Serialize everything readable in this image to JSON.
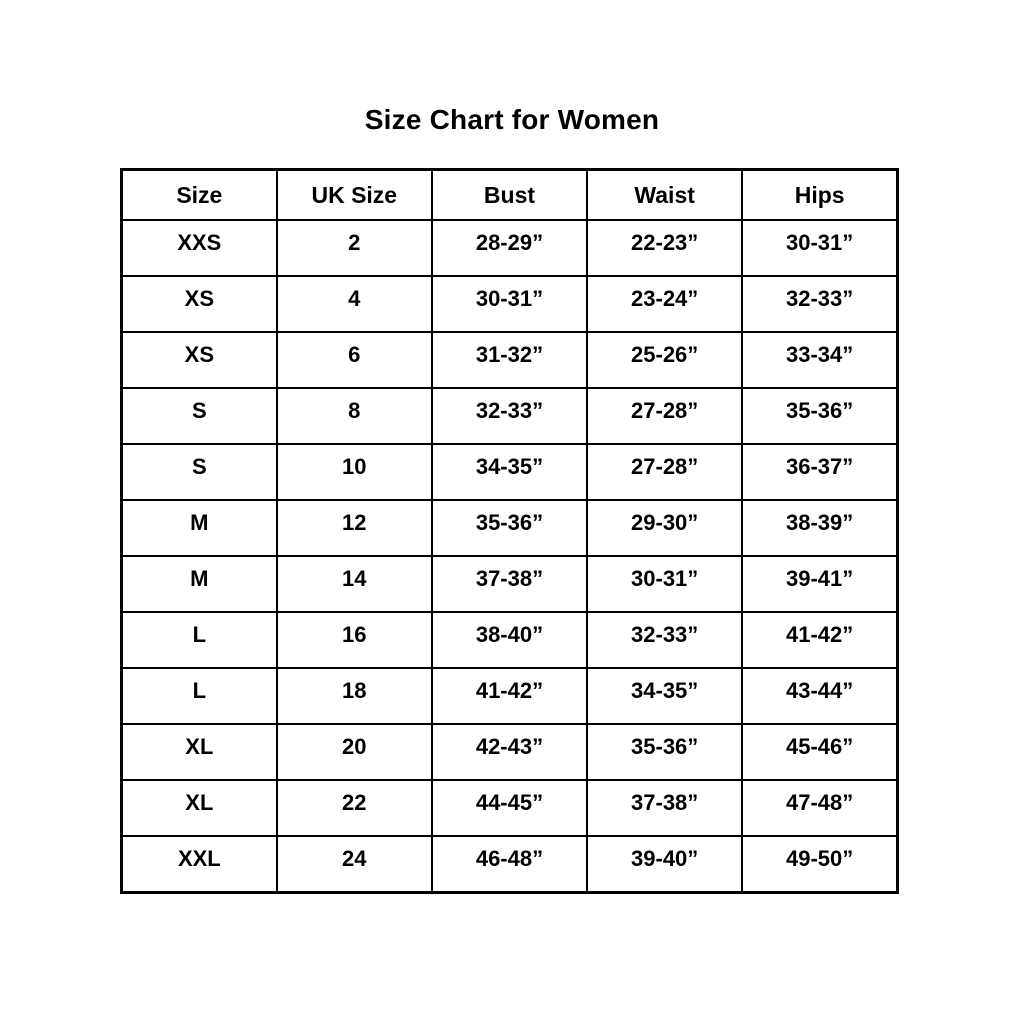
{
  "page": {
    "title": "Size Chart for Women"
  },
  "chart_data": {
    "type": "table",
    "title": "Size Chart for Women",
    "columns": [
      "Size",
      "UK Size",
      "Bust",
      "Waist",
      "Hips"
    ],
    "rows": [
      [
        "XXS",
        "2",
        "28-29”",
        "22-23”",
        "30-31”"
      ],
      [
        "XS",
        "4",
        "30-31”",
        "23-24”",
        "32-33”"
      ],
      [
        "XS",
        "6",
        "31-32”",
        "25-26”",
        "33-34”"
      ],
      [
        "S",
        "8",
        "32-33”",
        "27-28”",
        "35-36”"
      ],
      [
        "S",
        "10",
        "34-35”",
        "27-28”",
        "36-37”"
      ],
      [
        "M",
        "12",
        "35-36”",
        "29-30”",
        "38-39”"
      ],
      [
        "M",
        "14",
        "37-38”",
        "30-31”",
        "39-41”"
      ],
      [
        "L",
        "16",
        "38-40”",
        "32-33”",
        "41-42”"
      ],
      [
        "L",
        "18",
        "41-42”",
        "34-35”",
        "43-44”"
      ],
      [
        "XL",
        "20",
        "42-43”",
        "35-36”",
        "45-46”"
      ],
      [
        "XL",
        "22",
        "44-45”",
        "37-38”",
        "47-48”"
      ],
      [
        "XXL",
        "24",
        "46-48”",
        "39-40”",
        "49-50”"
      ]
    ],
    "layout": {
      "grid": "on",
      "border_color": "#000000",
      "background": "#ffffff",
      "text_color": "#000000"
    }
  }
}
